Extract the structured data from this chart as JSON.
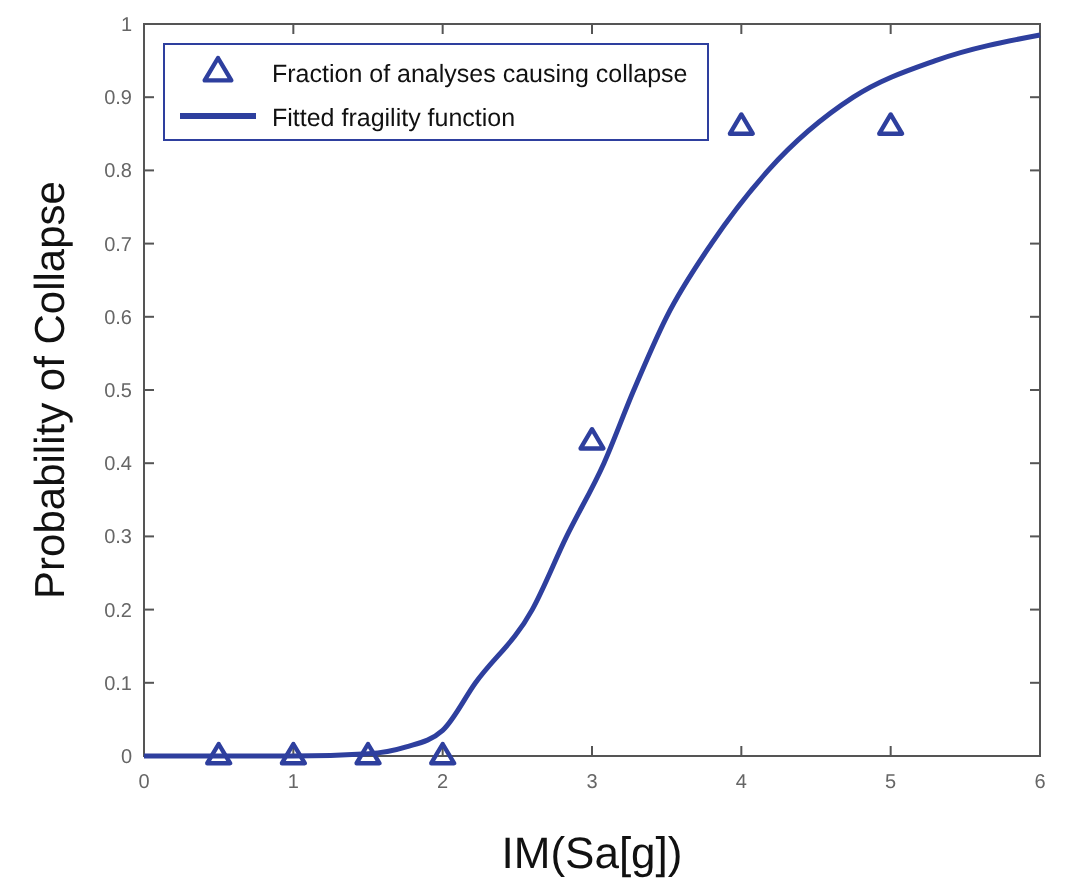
{
  "chart_data": {
    "type": "scatter",
    "xlabel": "IM(Sa[g])",
    "ylabel": "Probability of Collapse",
    "xlim": [
      0,
      6
    ],
    "ylim": [
      0,
      1
    ],
    "xticks": [
      0,
      1,
      2,
      3,
      4,
      5,
      6
    ],
    "yticks": [
      0,
      0.1,
      0.2,
      0.3,
      0.4,
      0.5,
      0.6,
      0.7,
      0.8,
      0.9,
      1
    ],
    "legend": "top left",
    "grid": false,
    "series": [
      {
        "name": "Fraction of analyses causing collapse",
        "type": "scatter",
        "marker": "triangle",
        "color": "#2e3f9e",
        "x": [
          0.5,
          1,
          1.5,
          2,
          3,
          4,
          5
        ],
        "values": [
          0,
          0,
          0,
          0,
          0.43,
          0.86,
          0.86
        ]
      },
      {
        "name": "Fitted fragility function",
        "type": "line",
        "line_style": "solid",
        "marker": "none",
        "color": "#2e3f9e",
        "x": [
          0,
          1,
          1.5,
          1.75,
          2,
          2.22,
          2.6,
          2.83,
          3.08,
          3.28,
          3.5,
          3.8,
          4.18,
          4.75,
          5.3,
          6
        ],
        "values": [
          0,
          0,
          0.003,
          0.012,
          0.035,
          0.1,
          0.2,
          0.3,
          0.4,
          0.5,
          0.6,
          0.7,
          0.8,
          0.9,
          0.95,
          0.985
        ]
      }
    ]
  }
}
